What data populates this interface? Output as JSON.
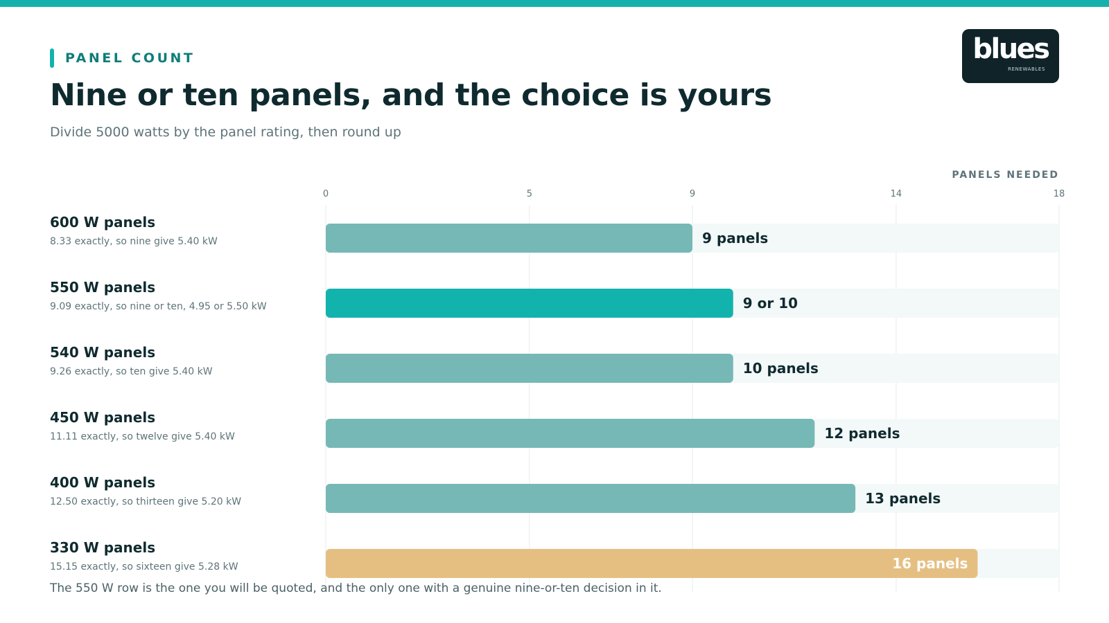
{
  "header": {
    "eyebrow": "PANEL COUNT",
    "title": "Nine or ten panels, and the choice is yours",
    "subtitle": "Divide 5000 watts by the panel rating, then round up"
  },
  "logo": {
    "word": "blues",
    "tagline": "RENEWABLES"
  },
  "footnote": "The 550 W row is the one you will be quoted, and the only one with a genuine nine-or-ten decision in it.",
  "colors": {
    "accent": "#16b1ad",
    "bar_default": "#76b8b5",
    "bar_highlight": "#13b3ad",
    "bar_warning": "#e5bf82",
    "track": "#f3f8f8",
    "grid": "#e6ecee"
  },
  "chart_data": {
    "type": "bar",
    "orientation": "horizontal",
    "title": "Nine or ten panels, and the choice is yours",
    "subtitle": "Divide 5000 watts by the panel rating, then round up",
    "xlabel": "PANELS NEEDED",
    "xlim": [
      0,
      18
    ],
    "xticks": [
      0,
      5,
      9,
      14,
      18
    ],
    "grid": true,
    "categories": [
      "600 W panels",
      "550 W panels",
      "540 W panels",
      "450 W panels",
      "400 W panels",
      "330 W panels"
    ],
    "notes": [
      "8.33 exactly, so nine give 5.40 kW",
      "9.09 exactly, so nine or ten, 4.95 or 5.50 kW",
      "9.26 exactly, so ten give 5.40 kW",
      "11.11 exactly, so twelve give 5.40 kW",
      "12.50 exactly, so thirteen give 5.20 kW",
      "15.15 exactly, so sixteen give 5.28 kW"
    ],
    "values": [
      9,
      10,
      10,
      12,
      13,
      16
    ],
    "value_labels": [
      "9 panels",
      "9 or 10",
      "10 panels",
      "12 panels",
      "13 panels",
      "16 panels"
    ],
    "highlight": [
      "default",
      "accent",
      "default",
      "default",
      "default",
      "warning"
    ]
  }
}
